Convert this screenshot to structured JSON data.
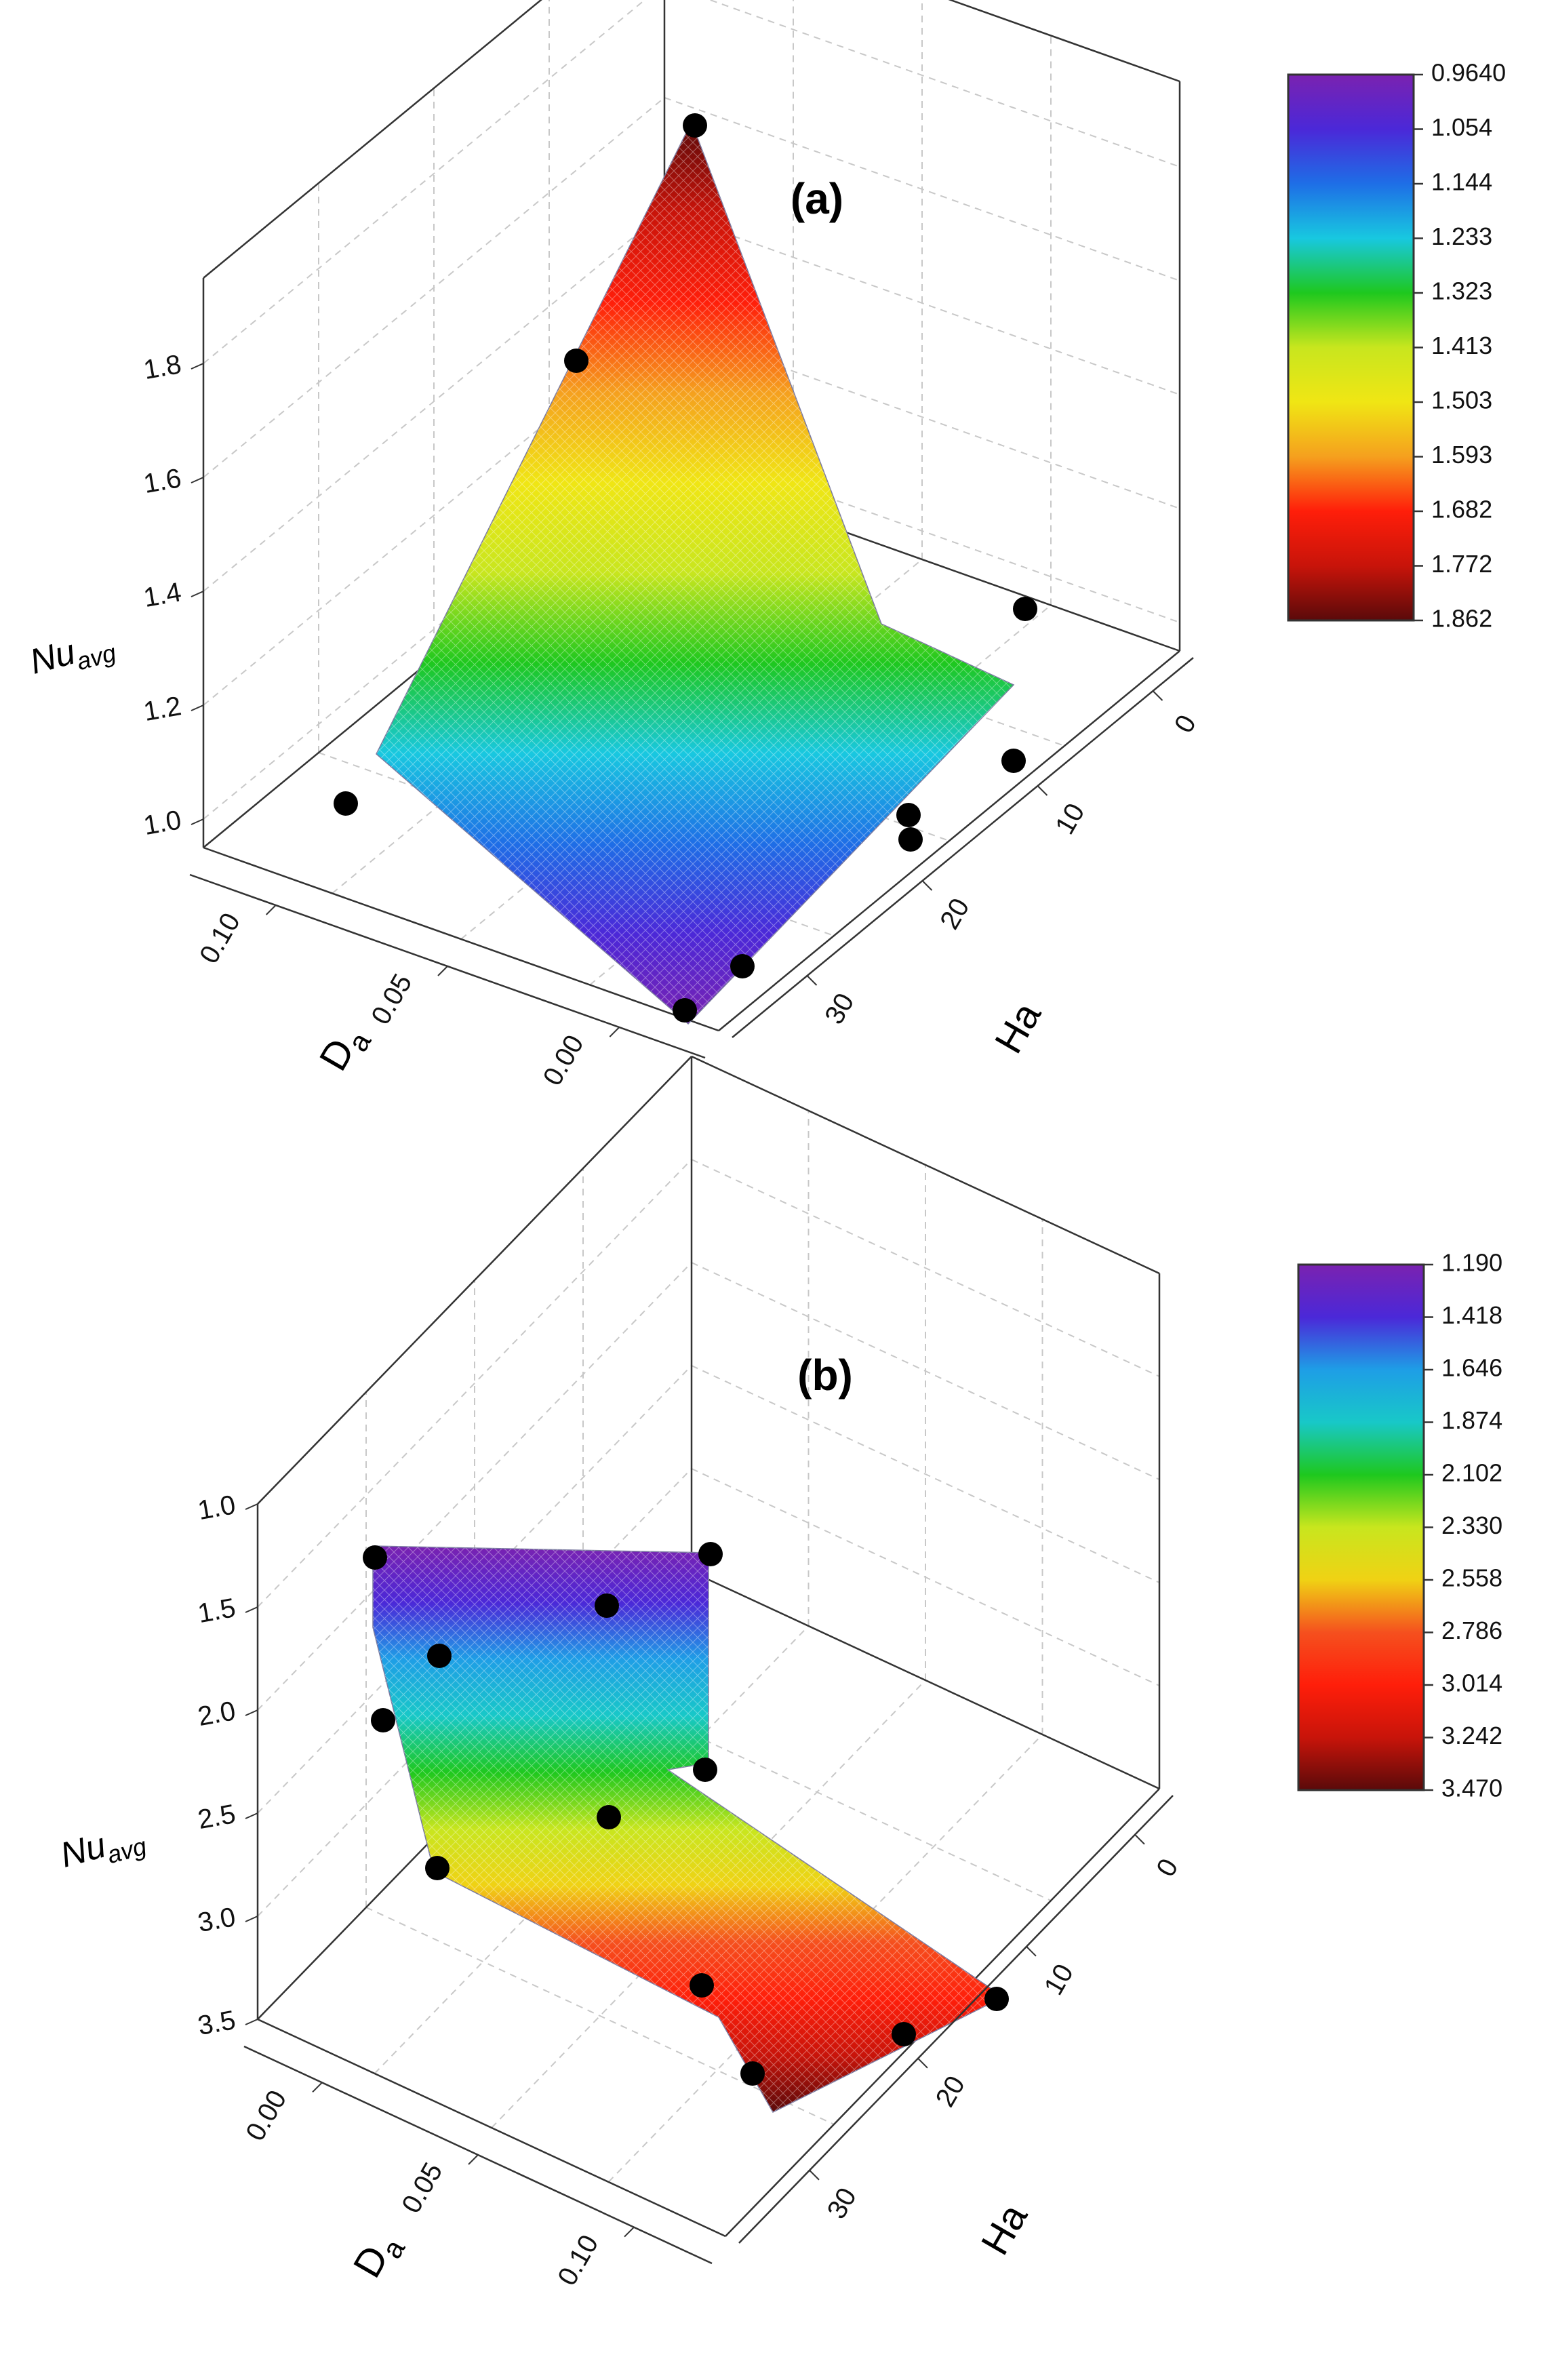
{
  "chart_data": [
    {
      "type": "surface3d",
      "title": "(a)",
      "zlabel": {
        "main": "Nu",
        "sub": "avg"
      },
      "xlabel": {
        "main": "D",
        "sub": "a"
      },
      "ylabel": "Ha",
      "z_ticks": [
        "1.0",
        "1.2",
        "1.4",
        "1.6",
        "1.8"
      ],
      "x_ticks": [
        "0.10",
        "0.05",
        "0.00"
      ],
      "y_ticks": [
        "0",
        "10",
        "20",
        "30"
      ],
      "colorbar": [
        "0.9640",
        "1.054",
        "1.144",
        "1.233",
        "1.323",
        "1.413",
        "1.503",
        "1.593",
        "1.682",
        "1.772",
        "1.862"
      ],
      "colors": [
        "#7a22b0",
        "#4b28d8",
        "#1e6ee6",
        "#18c8e0",
        "#1ec81e",
        "#c8e61e",
        "#f0e614",
        "#f5a01e",
        "#ff1e0a",
        "#c8140a",
        "#5a0a0a"
      ],
      "points": [
        {
          "Da": 0.12,
          "Ha": 0,
          "Nu": 1.86
        },
        {
          "Da": 0.12,
          "Ha": 30,
          "Nu": 1.0
        },
        {
          "Da": 0.12,
          "Ha": 10,
          "Nu": 1.75
        },
        {
          "Da": 0.0,
          "Ha": 0,
          "Nu": 1.42
        },
        {
          "Da": 0.0,
          "Ha": 0,
          "Nu": 1.1
        },
        {
          "Da": 0.0,
          "Ha": 10,
          "Nu": 1.0
        },
        {
          "Da": 0.0,
          "Ha": 20,
          "Nu": 0.99
        },
        {
          "Da": 0.0,
          "Ha": 30,
          "Nu": 0.97
        },
        {
          "Da": 0.0,
          "Ha": 30,
          "Nu": 0.97
        }
      ]
    },
    {
      "type": "surface3d",
      "title": "(b)",
      "zlabel": {
        "main": "Nu",
        "sub": "avg"
      },
      "xlabel": {
        "main": "D",
        "sub": "a"
      },
      "ylabel": "Ha",
      "z_ticks": [
        "1.0",
        "1.5",
        "2.0",
        "2.5",
        "3.0",
        "3.5"
      ],
      "x_ticks": [
        "0.00",
        "0.05",
        "0.10"
      ],
      "y_ticks": [
        "0",
        "10",
        "20",
        "30"
      ],
      "colorbar": [
        "1.190",
        "1.418",
        "1.646",
        "1.874",
        "2.102",
        "2.330",
        "2.558",
        "2.786",
        "3.014",
        "3.242",
        "3.470"
      ],
      "colors": [
        "#7a22b0",
        "#4b28d8",
        "#1e9ee6",
        "#18c8c8",
        "#1ec81e",
        "#c8e61e",
        "#f0d214",
        "#f5501e",
        "#ff1e0a",
        "#c8140a",
        "#5a0a0a"
      ],
      "points": [
        {
          "Da": 0.0,
          "Ha": 30,
          "Nu": 1.1
        },
        {
          "Da": 0.0,
          "Ha": 0,
          "Nu": 1.1
        },
        {
          "Da": 0.0,
          "Ha": 20,
          "Nu": 1.5
        },
        {
          "Da": 0.0,
          "Ha": 30,
          "Nu": 1.8
        },
        {
          "Da": 0.0,
          "Ha": 30,
          "Nu": 2.1
        },
        {
          "Da": 0.0,
          "Ha": 0,
          "Nu": 2.4
        },
        {
          "Da": 0.0,
          "Ha": 15,
          "Nu": 2.7
        },
        {
          "Da": 0.0,
          "Ha": 30,
          "Nu": 2.9
        },
        {
          "Da": 0.12,
          "Ha": 30,
          "Nu": 3.1
        },
        {
          "Da": 0.12,
          "Ha": 20,
          "Nu": 3.4
        },
        {
          "Da": 0.12,
          "Ha": 10,
          "Nu": 3.3
        },
        {
          "Da": 0.12,
          "Ha": 0,
          "Nu": 3.2
        }
      ]
    }
  ]
}
